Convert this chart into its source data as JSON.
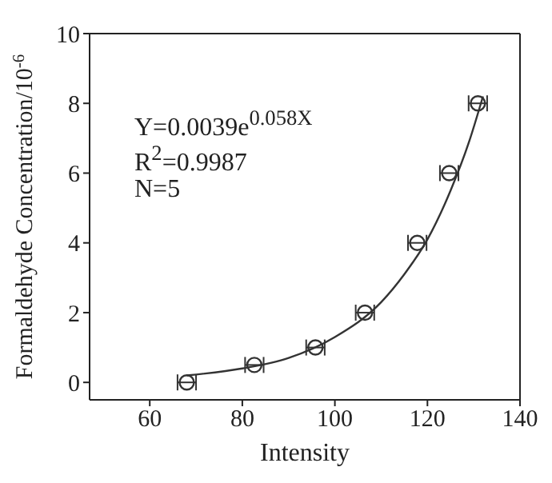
{
  "chart_data": {
    "type": "scatter",
    "xlabel": "Intensity",
    "ylabel": "Formaldehyde Concentration/10$^{-6}$",
    "xlim": [
      47,
      140
    ],
    "xticks": [
      60,
      80,
      100,
      120,
      140
    ],
    "ylim": [
      -0.5,
      10
    ],
    "yticks": [
      0,
      2,
      4,
      6,
      8,
      10
    ],
    "annotations": [
      "Y=0.0039e$^{0.058X}$",
      "R$^{2}$=0.9987",
      "N=5"
    ],
    "marker": "circle",
    "legend": false,
    "series": [
      {
        "color": "#333333",
        "x": [
          68,
          82.6,
          95.8,
          106.5,
          117.8,
          124.7,
          130.9
        ],
        "values": [
          0,
          0.5,
          1,
          2,
          4,
          6,
          8
        ],
        "xerrors": [
          2,
          2,
          2,
          2,
          2,
          2,
          2
        ]
      },
      {
        "type": "line",
        "marker": "none",
        "color": "#333333",
        "x": [
          68,
          80,
          90,
          100,
          110,
          115,
          120,
          125,
          129,
          132
        ],
        "values": [
          0.2,
          0.4,
          0.7,
          1.3,
          2.3,
          3.1,
          4.1,
          5.5,
          6.9,
          8.2
        ]
      }
    ]
  }
}
